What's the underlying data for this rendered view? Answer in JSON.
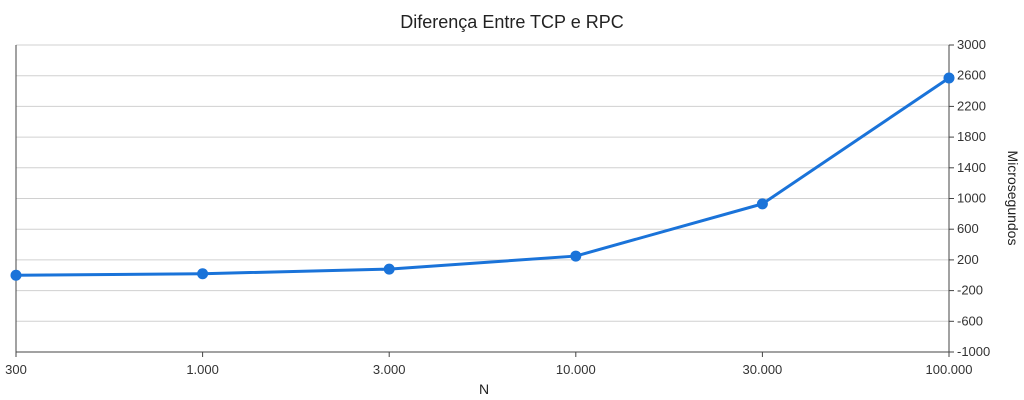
{
  "chart_data": {
    "type": "line",
    "title": "Diferença Entre TCP e RPC",
    "xlabel": "N",
    "ylabel": "Microsegundos",
    "categories": [
      "300",
      "1.000",
      "3.000",
      "10.000",
      "30.000",
      "100.000"
    ],
    "series": [
      {
        "values": [
          0,
          20,
          80,
          250,
          930,
          2570
        ]
      }
    ],
    "ylim": [
      -1000,
      3000
    ],
    "yticks": [
      "3000",
      "2600",
      "2200",
      "1800",
      "1400",
      "1000",
      "600",
      "200",
      "-200",
      "-600",
      "-1000"
    ],
    "y_axis_side": "right",
    "grid": true,
    "colors": {
      "line": "#1a73d9",
      "grid": "#d0d0d0"
    }
  }
}
